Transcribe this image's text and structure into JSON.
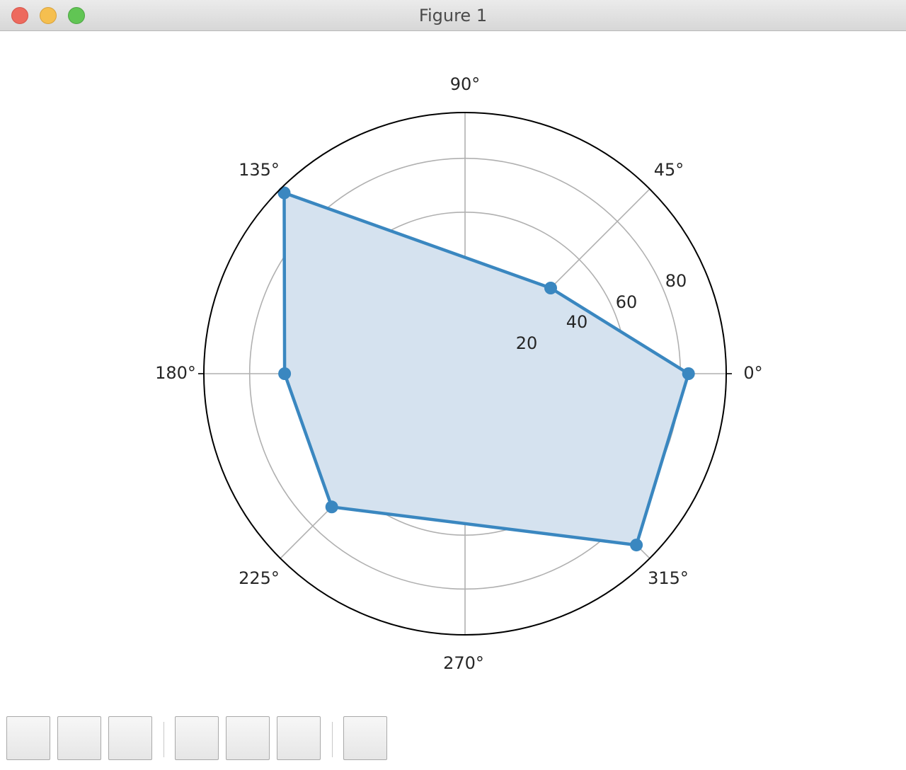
{
  "window": {
    "title": "Figure 1"
  },
  "toolbar": {
    "buttons": [
      "home-button",
      "back-button",
      "forward-button",
      "pan-button",
      "zoom-button",
      "configure-subplots-button",
      "save-button"
    ]
  },
  "chart_data": {
    "type": "radar",
    "projection": "polar",
    "theta_tick_labels": [
      "0°",
      "45°",
      "90°",
      "135°",
      "180°",
      "225°",
      "270°",
      "315°"
    ],
    "theta_ticks_deg": [
      0,
      45,
      90,
      135,
      180,
      225,
      270,
      315
    ],
    "r_tick_labels": [
      "20",
      "40",
      "60",
      "80"
    ],
    "r_ticks": [
      20,
      40,
      60,
      80
    ],
    "rlim": [
      0,
      97
    ],
    "grid": true,
    "series": [
      {
        "angles_deg": [
          0,
          45,
          135,
          180,
          225,
          315
        ],
        "values": [
          83,
          45,
          95,
          67,
          70,
          90
        ],
        "line_color": "#3a87c0",
        "fill_color": "#d5e2ef",
        "marker": "circle"
      }
    ]
  }
}
